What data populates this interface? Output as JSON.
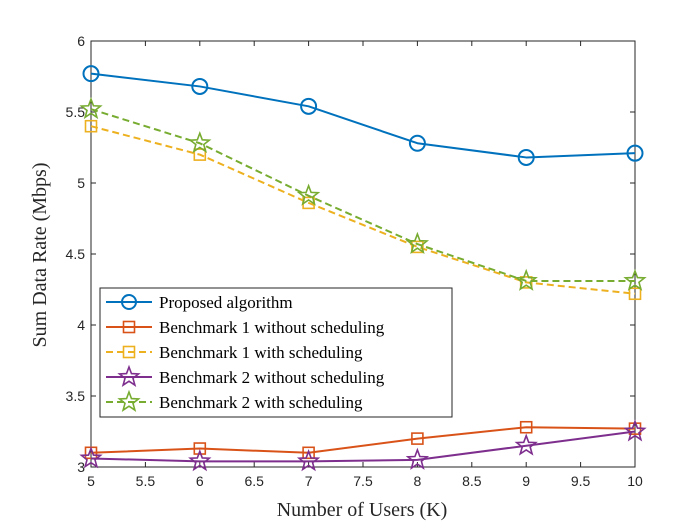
{
  "chart_data": {
    "type": "line",
    "title": "",
    "xlabel": "Number of Users (K)",
    "ylabel": "Sum Data Rate (Mbps)",
    "xlim": [
      5,
      10
    ],
    "ylim": [
      3,
      6
    ],
    "xticks": [
      5,
      5.5,
      6,
      6.5,
      7,
      7.5,
      8,
      8.5,
      9,
      9.5,
      10
    ],
    "yticks": [
      3,
      3.5,
      4,
      4.5,
      5,
      5.5,
      6
    ],
    "xtick_labels": [
      "5",
      "5.5",
      "6",
      "6.5",
      "7",
      "7.5",
      "8",
      "8.5",
      "9",
      "9.5",
      "10"
    ],
    "ytick_labels": [
      "3",
      "3.5",
      "4",
      "4.5",
      "5",
      "5.5",
      "6"
    ],
    "x": [
      5,
      6,
      7,
      8,
      9,
      10
    ],
    "grid": false,
    "legend_position": "lower-left",
    "series": [
      {
        "name": "Proposed algorithm",
        "values": [
          5.77,
          5.68,
          5.54,
          5.28,
          5.18,
          5.21
        ],
        "color": "#0072BD",
        "dash": "solid",
        "marker": "circle"
      },
      {
        "name": "Benchmark 1 without scheduling",
        "values": [
          3.1,
          3.13,
          3.1,
          3.2,
          3.28,
          3.27
        ],
        "color": "#D95319",
        "dash": "solid",
        "marker": "square"
      },
      {
        "name": "Benchmark 1 with scheduling",
        "values": [
          5.4,
          5.2,
          4.86,
          4.55,
          4.3,
          4.22
        ],
        "color": "#EDB120",
        "dash": "dashed",
        "marker": "square"
      },
      {
        "name": "Benchmark 2 without scheduling",
        "values": [
          3.06,
          3.04,
          3.04,
          3.05,
          3.15,
          3.25
        ],
        "color": "#7E2F8E",
        "dash": "solid",
        "marker": "star"
      },
      {
        "name": "Benchmark 2 with scheduling",
        "values": [
          5.52,
          5.28,
          4.91,
          4.57,
          4.31,
          4.31
        ],
        "color": "#77AC30",
        "dash": "dashed",
        "marker": "star"
      }
    ]
  }
}
